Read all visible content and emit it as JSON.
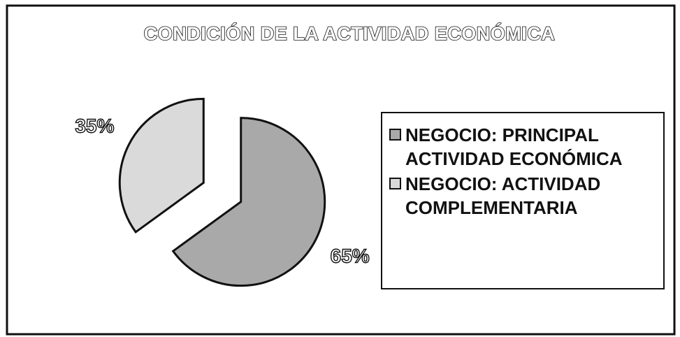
{
  "chart_data": {
    "type": "pie",
    "title": "CONDICIÓN DE LA ACTIVIDAD ECONÓMICA",
    "categories": [
      "NEGOCIO: PRINCIPAL ACTIVIDAD ECONÓMICA",
      "NEGOCIO: ACTIVIDAD COMPLEMENTARIA"
    ],
    "values": [
      65,
      35
    ],
    "value_labels": [
      "65%",
      "35%"
    ],
    "colors": [
      "#a9a9a9",
      "#dadada"
    ]
  }
}
